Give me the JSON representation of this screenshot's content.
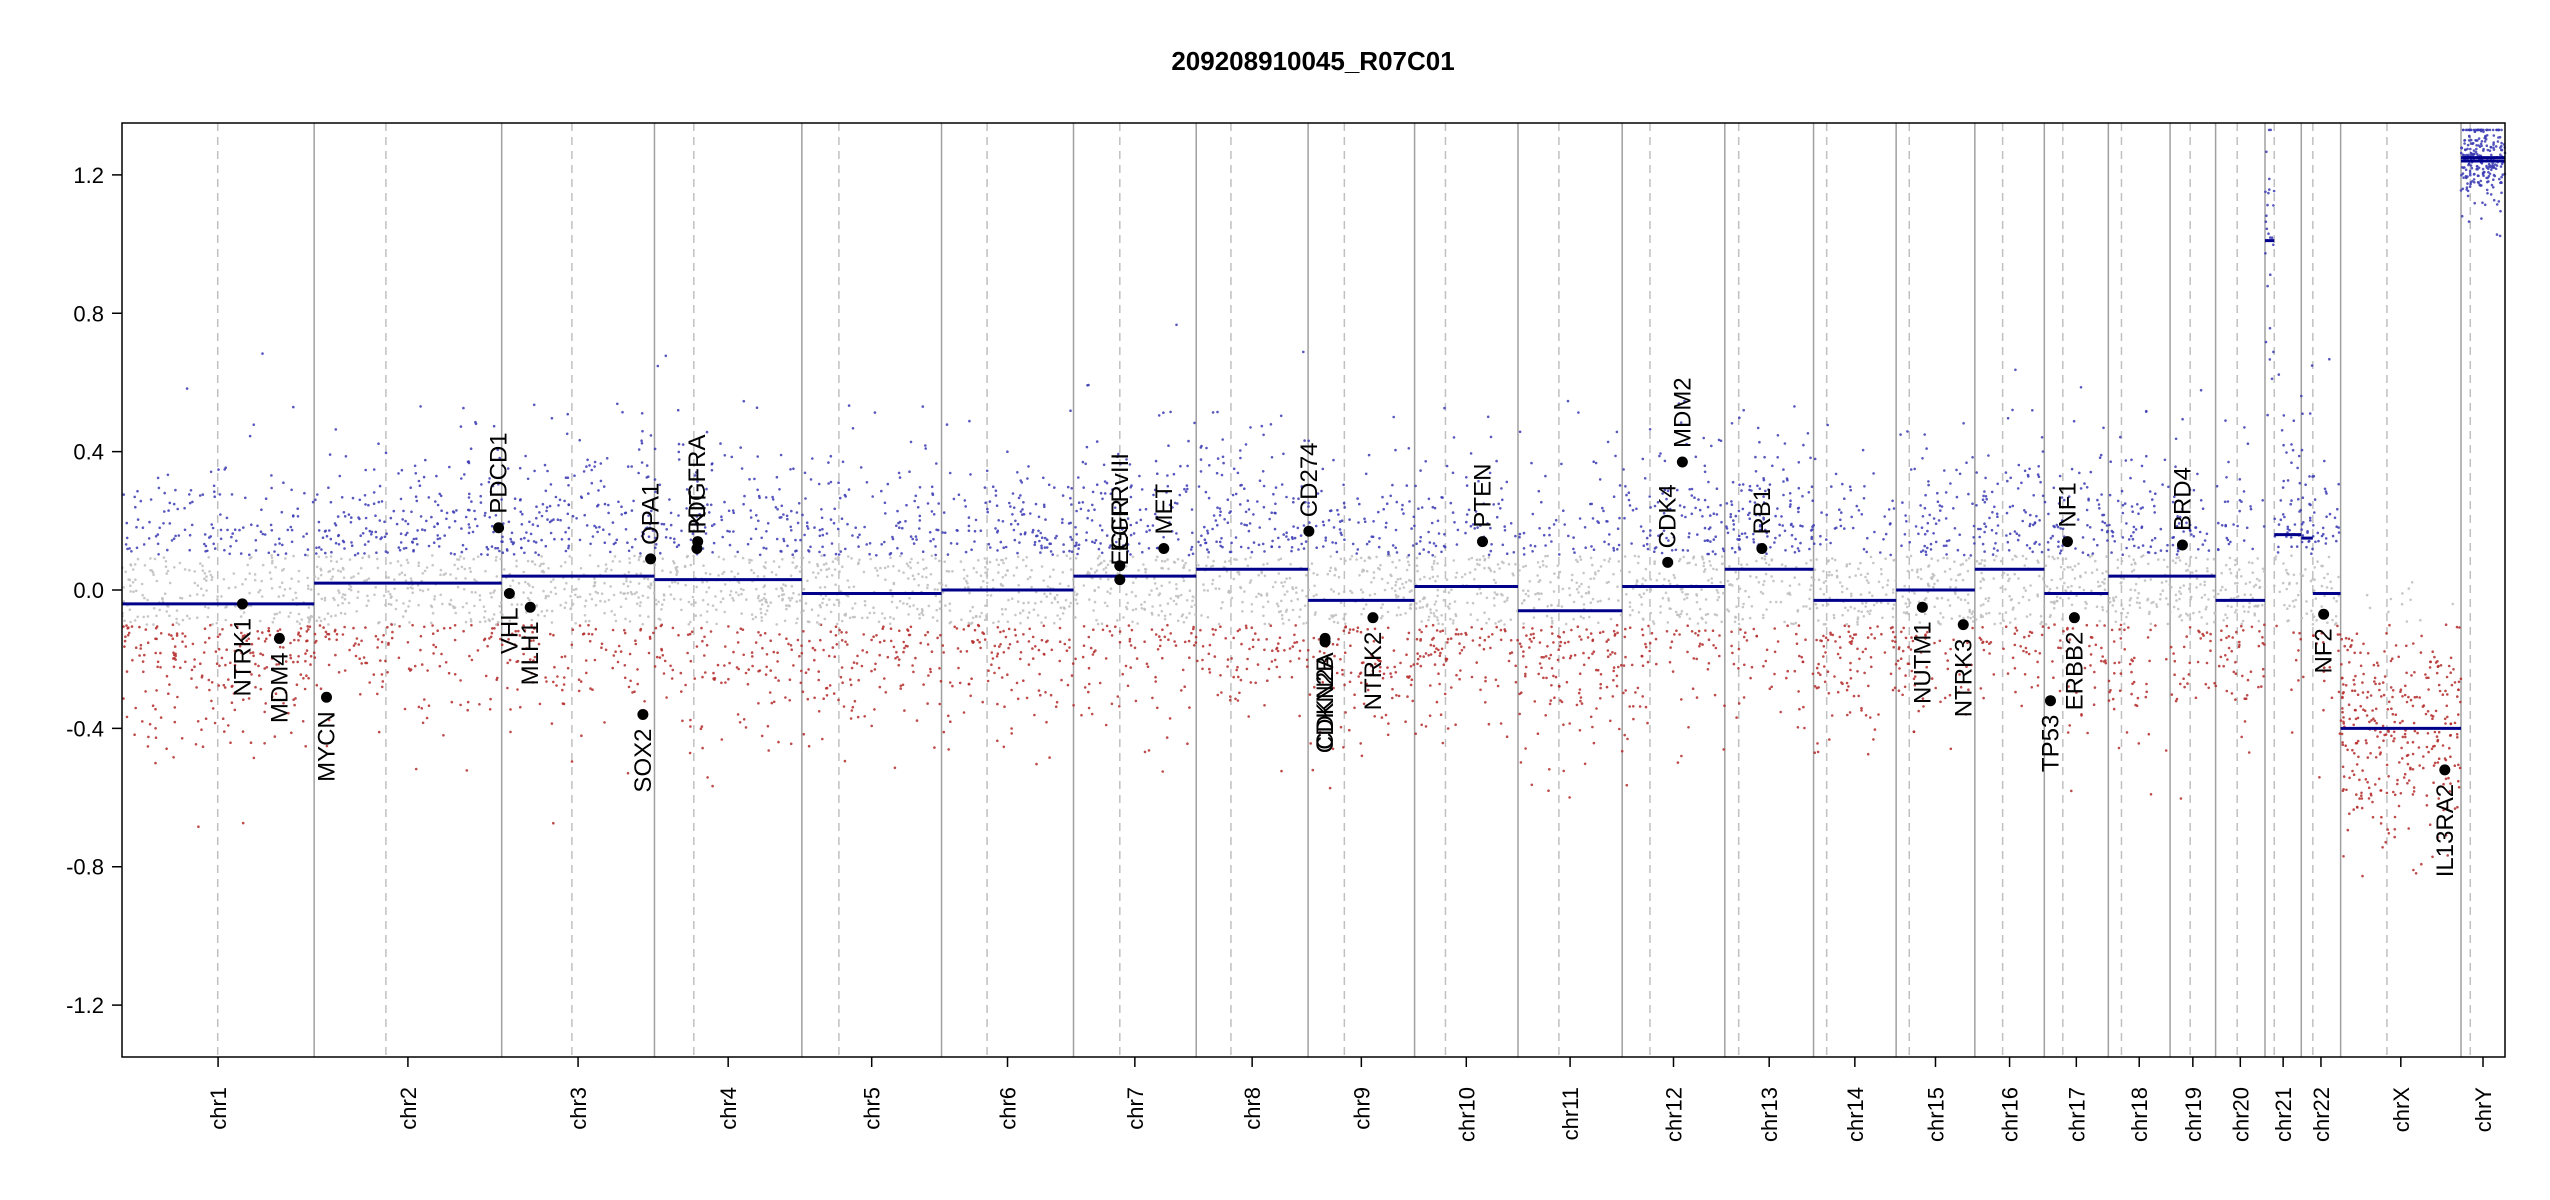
{
  "chart_data": {
    "type": "scatter",
    "title": "209208910045_R07C01",
    "xlabel": "",
    "ylabel": "",
    "ylim": [
      -1.35,
      1.35
    ],
    "yticks": [
      -1.2,
      -0.8,
      -0.4,
      0.0,
      0.4,
      0.8,
      1.2
    ],
    "ytick_labels": [
      "-1.2",
      "-0.8",
      "-0.4",
      "0.0",
      "0.4",
      "0.8",
      "1.2"
    ],
    "grid": false,
    "colors": {
      "gain_points": "#3a3ab4",
      "loss_points": "#b42a2a",
      "neutral_points": "#bdbdbd",
      "segments": "#00008b",
      "chromosome_border": "#a0a0a0",
      "centromere": "#c0c0c0",
      "gene_marker": "#000000"
    },
    "chromosomes": [
      {
        "name": "chr1",
        "start": 0,
        "end": 249,
        "centromere": 124
      },
      {
        "name": "chr2",
        "start": 249,
        "end": 492,
        "centromere": 342
      },
      {
        "name": "chr3",
        "start": 492,
        "end": 690,
        "centromere": 583
      },
      {
        "name": "chr4",
        "start": 690,
        "end": 881,
        "centromere": 741
      },
      {
        "name": "chr5",
        "start": 881,
        "end": 1062,
        "centromere": 929
      },
      {
        "name": "chr6",
        "start": 1062,
        "end": 1233,
        "centromere": 1121
      },
      {
        "name": "chr7",
        "start": 1233,
        "end": 1392,
        "centromere": 1293
      },
      {
        "name": "chr8",
        "start": 1392,
        "end": 1537,
        "centromere": 1437
      },
      {
        "name": "chr9",
        "start": 1537,
        "end": 1675,
        "centromere": 1584
      },
      {
        "name": "chr10",
        "start": 1675,
        "end": 1809,
        "centromere": 1715
      },
      {
        "name": "chr11",
        "start": 1809,
        "end": 1944,
        "centromere": 1862
      },
      {
        "name": "chr12",
        "start": 1944,
        "end": 2077,
        "centromere": 1980
      },
      {
        "name": "chr13",
        "start": 2077,
        "end": 2192,
        "centromere": 2095
      },
      {
        "name": "chr14",
        "start": 2192,
        "end": 2299,
        "centromere": 2209
      },
      {
        "name": "chr15",
        "start": 2299,
        "end": 2401,
        "centromere": 2316
      },
      {
        "name": "chr16",
        "start": 2401,
        "end": 2491,
        "centromere": 2437
      },
      {
        "name": "chr17",
        "start": 2491,
        "end": 2574,
        "centromere": 2515
      },
      {
        "name": "chr18",
        "start": 2574,
        "end": 2654,
        "centromere": 2591
      },
      {
        "name": "chr19",
        "start": 2654,
        "end": 2713,
        "centromere": 2680
      },
      {
        "name": "chr20",
        "start": 2713,
        "end": 2777,
        "centromere": 2741
      },
      {
        "name": "chr21",
        "start": 2777,
        "end": 2824,
        "centromere": 2789
      },
      {
        "name": "chr22",
        "start": 2824,
        "end": 2875,
        "centromere": 2839
      },
      {
        "name": "chrX",
        "start": 2875,
        "end": 3031,
        "centromere": 2935
      },
      {
        "name": "chrY",
        "start": 3031,
        "end": 3088,
        "centromere": 3043
      }
    ],
    "segments": [
      {
        "chr": "chr1",
        "start": 0,
        "end": 249,
        "value": -0.04
      },
      {
        "chr": "chr2",
        "start": 249,
        "end": 492,
        "value": 0.02
      },
      {
        "chr": "chr3",
        "start": 492,
        "end": 690,
        "value": 0.04
      },
      {
        "chr": "chr4",
        "start": 690,
        "end": 881,
        "value": 0.03
      },
      {
        "chr": "chr5",
        "start": 881,
        "end": 1062,
        "value": -0.01
      },
      {
        "chr": "chr6",
        "start": 1062,
        "end": 1233,
        "value": 0.0
      },
      {
        "chr": "chr7",
        "start": 1233,
        "end": 1392,
        "value": 0.04
      },
      {
        "chr": "chr8",
        "start": 1392,
        "end": 1537,
        "value": 0.06
      },
      {
        "chr": "chr9",
        "start": 1537,
        "end": 1675,
        "value": -0.03
      },
      {
        "chr": "chr10",
        "start": 1675,
        "end": 1809,
        "value": 0.01
      },
      {
        "chr": "chr11",
        "start": 1809,
        "end": 1944,
        "value": -0.06
      },
      {
        "chr": "chr12",
        "start": 1944,
        "end": 2077,
        "value": 0.01
      },
      {
        "chr": "chr13",
        "start": 2077,
        "end": 2192,
        "value": 0.06
      },
      {
        "chr": "chr14",
        "start": 2192,
        "end": 2299,
        "value": -0.03
      },
      {
        "chr": "chr15",
        "start": 2299,
        "end": 2401,
        "value": 0.0
      },
      {
        "chr": "chr16",
        "start": 2401,
        "end": 2491,
        "value": 0.06
      },
      {
        "chr": "chr17",
        "start": 2491,
        "end": 2574,
        "value": -0.01
      },
      {
        "chr": "chr18",
        "start": 2574,
        "end": 2654,
        "value": 0.04
      },
      {
        "chr": "chr19",
        "start": 2654,
        "end": 2713,
        "value": 0.04
      },
      {
        "chr": "chr20",
        "start": 2713,
        "end": 2777,
        "value": -0.03
      },
      {
        "chr": "chr21",
        "start": 2777,
        "end": 2789,
        "value": 1.01
      },
      {
        "chr": "chr21",
        "start": 2789,
        "end": 2824,
        "value": 0.16
      },
      {
        "chr": "chr22",
        "start": 2824,
        "end": 2839,
        "value": 0.15
      },
      {
        "chr": "chr22",
        "start": 2839,
        "end": 2875,
        "value": -0.01
      },
      {
        "chr": "chrX",
        "start": 2875,
        "end": 3031,
        "value": -0.4
      },
      {
        "chr": "chrY",
        "start": 3031,
        "end": 3088,
        "value": 1.25
      },
      {
        "chr": "chrY",
        "start": 3031,
        "end": 3088,
        "value": 1.24
      }
    ],
    "genes": [
      {
        "name": "NTRK1",
        "x": 156,
        "value": -0.04,
        "label_side": "below"
      },
      {
        "name": "MDM4",
        "x": 204,
        "value": -0.14,
        "label_side": "below"
      },
      {
        "name": "MYCN",
        "x": 265,
        "value": -0.31,
        "label_side": "below"
      },
      {
        "name": "PDCD1",
        "x": 488,
        "value": 0.18,
        "label_side": "above"
      },
      {
        "name": "VHL",
        "x": 502,
        "value": -0.01,
        "label_side": "below"
      },
      {
        "name": "MLH1",
        "x": 529,
        "value": -0.05,
        "label_side": "below"
      },
      {
        "name": "SOX2",
        "x": 675,
        "value": -0.36,
        "label_side": "below"
      },
      {
        "name": "OPA1",
        "x": 685,
        "value": 0.09,
        "label_side": "above"
      },
      {
        "name": "KIT",
        "x": 746,
        "value": 0.14,
        "label_side": "above"
      },
      {
        "name": "PDGFRA",
        "x": 745,
        "value": 0.12,
        "label_side": "above"
      },
      {
        "name": "EGFR",
        "x": 1293,
        "value": 0.03,
        "label_side": "above"
      },
      {
        "name": "EGFRvIII",
        "x": 1293,
        "value": 0.07,
        "label_side": "above"
      },
      {
        "name": "MET",
        "x": 1350,
        "value": 0.12,
        "label_side": "above"
      },
      {
        "name": "CD274",
        "x": 1538,
        "value": 0.17,
        "label_side": "above"
      },
      {
        "name": "CDKN2A",
        "x": 1559,
        "value": -0.14,
        "label_side": "below"
      },
      {
        "name": "CDKN2B",
        "x": 1559,
        "value": -0.15,
        "label_side": "below"
      },
      {
        "name": "NTRK2",
        "x": 1621,
        "value": -0.08,
        "label_side": "below"
      },
      {
        "name": "PTEN",
        "x": 1763,
        "value": 0.14,
        "label_side": "above"
      },
      {
        "name": "CDK4",
        "x": 2003,
        "value": 0.08,
        "label_side": "above"
      },
      {
        "name": "MDM2",
        "x": 2022,
        "value": 0.37,
        "label_side": "above"
      },
      {
        "name": "RB1",
        "x": 2125,
        "value": 0.12,
        "label_side": "above"
      },
      {
        "name": "NUTM1",
        "x": 2333,
        "value": -0.05,
        "label_side": "below"
      },
      {
        "name": "NTRK3",
        "x": 2386,
        "value": -0.1,
        "label_side": "below"
      },
      {
        "name": "TP53",
        "x": 2499,
        "value": -0.32,
        "label_side": "below"
      },
      {
        "name": "NF1",
        "x": 2521,
        "value": 0.14,
        "label_side": "above"
      },
      {
        "name": "ERBB2",
        "x": 2530,
        "value": -0.08,
        "label_side": "below"
      },
      {
        "name": "BRD4",
        "x": 2670,
        "value": 0.13,
        "label_side": "above"
      },
      {
        "name": "NF2",
        "x": 2853,
        "value": -0.07,
        "label_side": "below"
      },
      {
        "name": "IL13RA2",
        "x": 3010,
        "value": -0.52,
        "label_side": "below"
      }
    ]
  }
}
